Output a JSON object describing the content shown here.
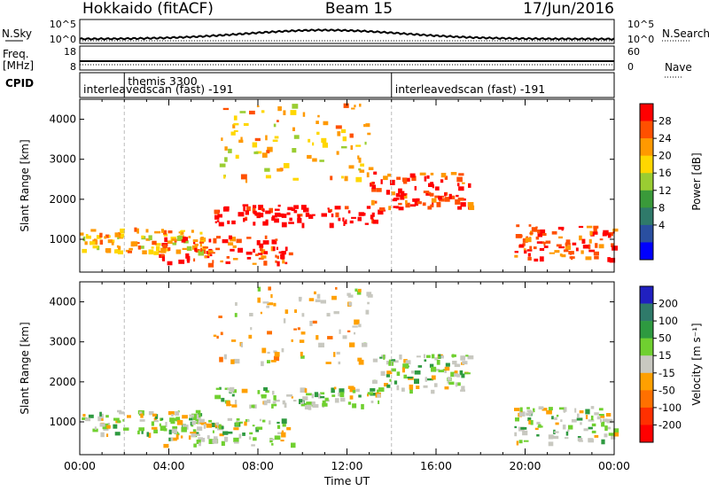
{
  "header": {
    "station": "Hokkaido (fitACF)",
    "beam": "Beam 15",
    "date": "17/Jun/2016"
  },
  "status_panel": {
    "nsky_label": "N.Sky",
    "nsky_ticks": [
      "10^5",
      "10^0"
    ],
    "nsearch_label": "N.Search",
    "nsearch_ticks": [
      "10^5",
      "10^0"
    ],
    "freq_label_1": "Freq.",
    "freq_label_2": "[MHz]",
    "freq_ticks": [
      "18",
      "8"
    ],
    "nave_label": "Nave",
    "nave_ticks": [
      "60",
      "0"
    ],
    "cpid_label": "CPID",
    "cpid_segments": [
      {
        "text": "interleavedscan (fast) -191",
        "start_hour": 0
      },
      {
        "text": "themis 3300",
        "start_hour": 2
      },
      {
        "text": "interleavedscan (fast) -191",
        "start_hour": 14
      }
    ]
  },
  "chart_data": [
    {
      "type": "heatmap",
      "name": "power",
      "xlabel": "",
      "ylabel": "Slant Range [km]",
      "xlim": [
        0,
        24
      ],
      "ylim": [
        180,
        4500
      ],
      "yticks": [
        1000,
        2000,
        3000,
        4000
      ],
      "colorbar": {
        "label": "Power [dB]",
        "ticks": [
          "28",
          "24",
          "20",
          "16",
          "12",
          "8",
          "4"
        ],
        "colors": [
          "#ff0000",
          "#ff5000",
          "#ff9900",
          "#ffd700",
          "#9acd32",
          "#3a9a3a",
          "#2f7a6a",
          "#2a4fa0",
          "#0000ff"
        ]
      },
      "echo_bands": [
        {
          "t0": 0.0,
          "t1": 5.5,
          "r0": 700,
          "r1": 1300,
          "level": 3
        },
        {
          "t0": 3.5,
          "t1": 9.5,
          "r0": 400,
          "r1": 1100,
          "level": 1
        },
        {
          "t0": 6.0,
          "t1": 13.5,
          "r0": 1400,
          "r1": 1900,
          "level": 0
        },
        {
          "t0": 13.0,
          "t1": 17.5,
          "r0": 1800,
          "r1": 2700,
          "level": 1
        },
        {
          "t0": 19.5,
          "t1": 24.0,
          "r0": 500,
          "r1": 1400,
          "level": 1
        },
        {
          "t0": 6.0,
          "t1": 13.0,
          "r0": 2500,
          "r1": 4400,
          "level": 3
        }
      ]
    },
    {
      "type": "heatmap",
      "name": "velocity",
      "xlabel": "Time UT",
      "ylabel": "Slant Range [km]",
      "xlim": [
        0,
        24
      ],
      "ylim": [
        180,
        4500
      ],
      "xticks": [
        "00:00",
        "04:00",
        "08:00",
        "12:00",
        "16:00",
        "20:00",
        "00:00"
      ],
      "yticks": [
        1000,
        2000,
        3000,
        4000
      ],
      "colorbar": {
        "label": "Velocity [m s⁻¹]",
        "ticks": [
          "200",
          "100",
          "50",
          "15",
          "-15",
          "-50",
          "-100",
          "-200"
        ],
        "colors": [
          "#2020c0",
          "#2f7a6a",
          "#2e9a40",
          "#70d030",
          "#c8c8c0",
          "#ffa000",
          "#ff7000",
          "#ff3000",
          "#ff0000"
        ]
      },
      "echo_bands": [
        {
          "t0": 0.0,
          "t1": 5.5,
          "r0": 700,
          "r1": 1300,
          "level": 4
        },
        {
          "t0": 3.5,
          "t1": 9.5,
          "r0": 400,
          "r1": 1100,
          "level": 4
        },
        {
          "t0": 6.0,
          "t1": 13.5,
          "r0": 1400,
          "r1": 1900,
          "level": 4
        },
        {
          "t0": 13.0,
          "t1": 17.5,
          "r0": 1800,
          "r1": 2700,
          "level": 4
        },
        {
          "t0": 19.5,
          "t1": 24.0,
          "r0": 500,
          "r1": 1400,
          "level": 4
        },
        {
          "t0": 6.0,
          "t1": 13.0,
          "r0": 2500,
          "r1": 4400,
          "level": 5
        }
      ]
    }
  ]
}
